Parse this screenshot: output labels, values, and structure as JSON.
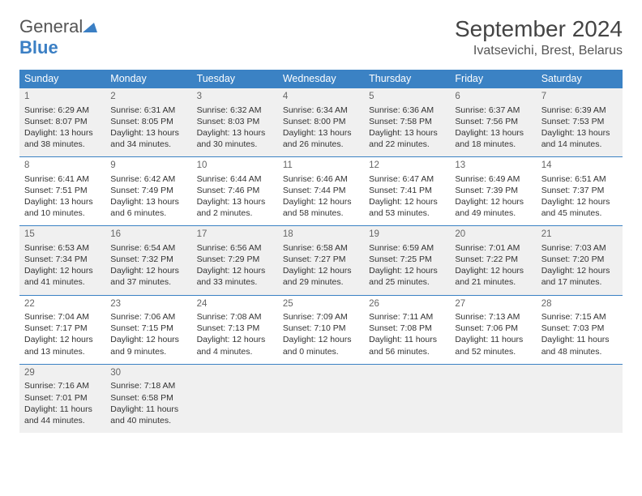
{
  "logo": {
    "general": "General",
    "blue": "Blue"
  },
  "title": "September 2024",
  "location": "Ivatsevichi, Brest, Belarus",
  "colors": {
    "header_bg": "#3b82c4",
    "header_text": "#ffffff",
    "shaded_bg": "#f0f0f0",
    "border": "#3b82c4",
    "text": "#333333",
    "logo_blue": "#3b7fc4"
  },
  "typography": {
    "title_fontsize": 28,
    "location_fontsize": 16,
    "header_fontsize": 12.5,
    "cell_fontsize": 10.5,
    "daynum_fontsize": 11.5
  },
  "weekdays": [
    "Sunday",
    "Monday",
    "Tuesday",
    "Wednesday",
    "Thursday",
    "Friday",
    "Saturday"
  ],
  "weeks": [
    {
      "shaded": true,
      "cells": [
        {
          "n": "1",
          "sr": "Sunrise: 6:29 AM",
          "ss": "Sunset: 8:07 PM",
          "d1": "Daylight: 13 hours",
          "d2": "and 38 minutes."
        },
        {
          "n": "2",
          "sr": "Sunrise: 6:31 AM",
          "ss": "Sunset: 8:05 PM",
          "d1": "Daylight: 13 hours",
          "d2": "and 34 minutes."
        },
        {
          "n": "3",
          "sr": "Sunrise: 6:32 AM",
          "ss": "Sunset: 8:03 PM",
          "d1": "Daylight: 13 hours",
          "d2": "and 30 minutes."
        },
        {
          "n": "4",
          "sr": "Sunrise: 6:34 AM",
          "ss": "Sunset: 8:00 PM",
          "d1": "Daylight: 13 hours",
          "d2": "and 26 minutes."
        },
        {
          "n": "5",
          "sr": "Sunrise: 6:36 AM",
          "ss": "Sunset: 7:58 PM",
          "d1": "Daylight: 13 hours",
          "d2": "and 22 minutes."
        },
        {
          "n": "6",
          "sr": "Sunrise: 6:37 AM",
          "ss": "Sunset: 7:56 PM",
          "d1": "Daylight: 13 hours",
          "d2": "and 18 minutes."
        },
        {
          "n": "7",
          "sr": "Sunrise: 6:39 AM",
          "ss": "Sunset: 7:53 PM",
          "d1": "Daylight: 13 hours",
          "d2": "and 14 minutes."
        }
      ]
    },
    {
      "shaded": false,
      "cells": [
        {
          "n": "8",
          "sr": "Sunrise: 6:41 AM",
          "ss": "Sunset: 7:51 PM",
          "d1": "Daylight: 13 hours",
          "d2": "and 10 minutes."
        },
        {
          "n": "9",
          "sr": "Sunrise: 6:42 AM",
          "ss": "Sunset: 7:49 PM",
          "d1": "Daylight: 13 hours",
          "d2": "and 6 minutes."
        },
        {
          "n": "10",
          "sr": "Sunrise: 6:44 AM",
          "ss": "Sunset: 7:46 PM",
          "d1": "Daylight: 13 hours",
          "d2": "and 2 minutes."
        },
        {
          "n": "11",
          "sr": "Sunrise: 6:46 AM",
          "ss": "Sunset: 7:44 PM",
          "d1": "Daylight: 12 hours",
          "d2": "and 58 minutes."
        },
        {
          "n": "12",
          "sr": "Sunrise: 6:47 AM",
          "ss": "Sunset: 7:41 PM",
          "d1": "Daylight: 12 hours",
          "d2": "and 53 minutes."
        },
        {
          "n": "13",
          "sr": "Sunrise: 6:49 AM",
          "ss": "Sunset: 7:39 PM",
          "d1": "Daylight: 12 hours",
          "d2": "and 49 minutes."
        },
        {
          "n": "14",
          "sr": "Sunrise: 6:51 AM",
          "ss": "Sunset: 7:37 PM",
          "d1": "Daylight: 12 hours",
          "d2": "and 45 minutes."
        }
      ]
    },
    {
      "shaded": true,
      "cells": [
        {
          "n": "15",
          "sr": "Sunrise: 6:53 AM",
          "ss": "Sunset: 7:34 PM",
          "d1": "Daylight: 12 hours",
          "d2": "and 41 minutes."
        },
        {
          "n": "16",
          "sr": "Sunrise: 6:54 AM",
          "ss": "Sunset: 7:32 PM",
          "d1": "Daylight: 12 hours",
          "d2": "and 37 minutes."
        },
        {
          "n": "17",
          "sr": "Sunrise: 6:56 AM",
          "ss": "Sunset: 7:29 PM",
          "d1": "Daylight: 12 hours",
          "d2": "and 33 minutes."
        },
        {
          "n": "18",
          "sr": "Sunrise: 6:58 AM",
          "ss": "Sunset: 7:27 PM",
          "d1": "Daylight: 12 hours",
          "d2": "and 29 minutes."
        },
        {
          "n": "19",
          "sr": "Sunrise: 6:59 AM",
          "ss": "Sunset: 7:25 PM",
          "d1": "Daylight: 12 hours",
          "d2": "and 25 minutes."
        },
        {
          "n": "20",
          "sr": "Sunrise: 7:01 AM",
          "ss": "Sunset: 7:22 PM",
          "d1": "Daylight: 12 hours",
          "d2": "and 21 minutes."
        },
        {
          "n": "21",
          "sr": "Sunrise: 7:03 AM",
          "ss": "Sunset: 7:20 PM",
          "d1": "Daylight: 12 hours",
          "d2": "and 17 minutes."
        }
      ]
    },
    {
      "shaded": false,
      "cells": [
        {
          "n": "22",
          "sr": "Sunrise: 7:04 AM",
          "ss": "Sunset: 7:17 PM",
          "d1": "Daylight: 12 hours",
          "d2": "and 13 minutes."
        },
        {
          "n": "23",
          "sr": "Sunrise: 7:06 AM",
          "ss": "Sunset: 7:15 PM",
          "d1": "Daylight: 12 hours",
          "d2": "and 9 minutes."
        },
        {
          "n": "24",
          "sr": "Sunrise: 7:08 AM",
          "ss": "Sunset: 7:13 PM",
          "d1": "Daylight: 12 hours",
          "d2": "and 4 minutes."
        },
        {
          "n": "25",
          "sr": "Sunrise: 7:09 AM",
          "ss": "Sunset: 7:10 PM",
          "d1": "Daylight: 12 hours",
          "d2": "and 0 minutes."
        },
        {
          "n": "26",
          "sr": "Sunrise: 7:11 AM",
          "ss": "Sunset: 7:08 PM",
          "d1": "Daylight: 11 hours",
          "d2": "and 56 minutes."
        },
        {
          "n": "27",
          "sr": "Sunrise: 7:13 AM",
          "ss": "Sunset: 7:06 PM",
          "d1": "Daylight: 11 hours",
          "d2": "and 52 minutes."
        },
        {
          "n": "28",
          "sr": "Sunrise: 7:15 AM",
          "ss": "Sunset: 7:03 PM",
          "d1": "Daylight: 11 hours",
          "d2": "and 48 minutes."
        }
      ]
    },
    {
      "shaded": true,
      "cells": [
        {
          "n": "29",
          "sr": "Sunrise: 7:16 AM",
          "ss": "Sunset: 7:01 PM",
          "d1": "Daylight: 11 hours",
          "d2": "and 44 minutes."
        },
        {
          "n": "30",
          "sr": "Sunrise: 7:18 AM",
          "ss": "Sunset: 6:58 PM",
          "d1": "Daylight: 11 hours",
          "d2": "and 40 minutes."
        },
        null,
        null,
        null,
        null,
        null
      ]
    }
  ]
}
